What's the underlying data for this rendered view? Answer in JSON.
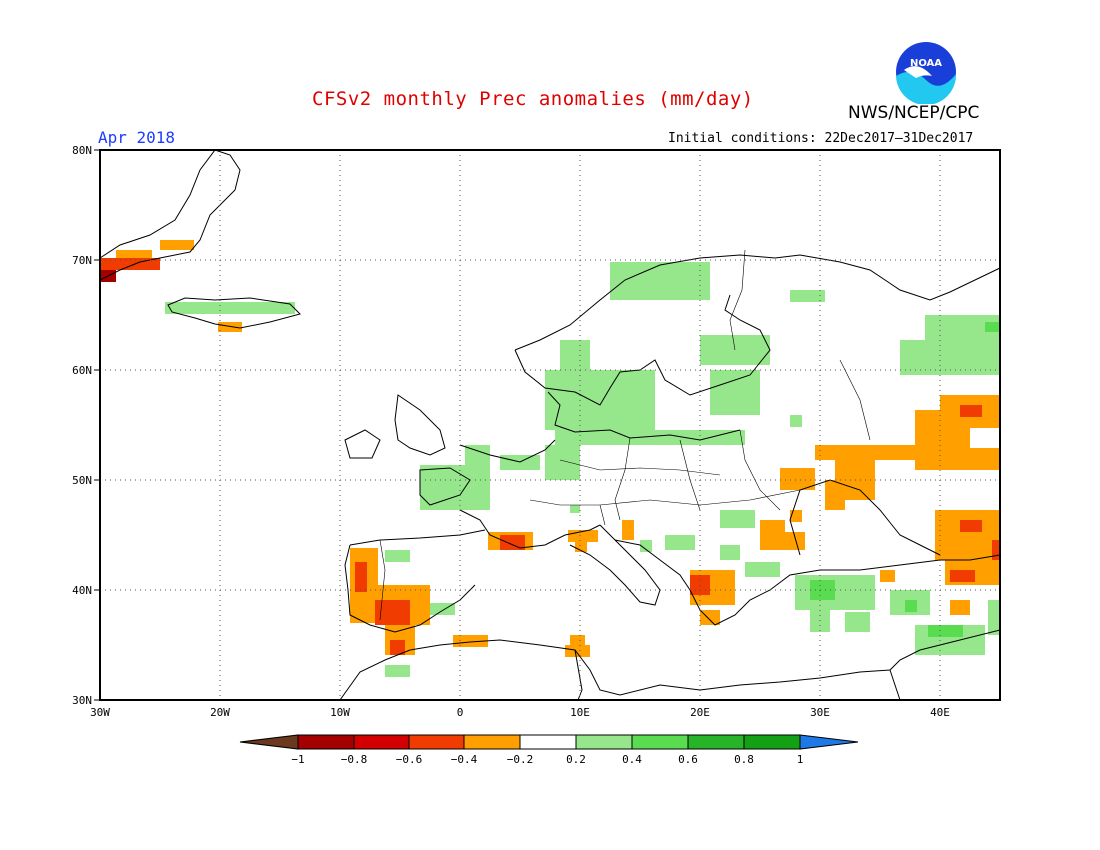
{
  "title": "CFSv2 monthly Prec anomalies (mm/day)",
  "month": "Apr 2018",
  "initial_conditions": "Initial conditions: 22Dec2017–31Dec2017",
  "agency": "NWS/NCEP/CPC",
  "logo_text": "NOAA",
  "map": {
    "lon_range": [
      -30,
      45
    ],
    "lat_range": [
      30,
      80
    ],
    "lat_ticks": [
      "80N",
      "70N",
      "60N",
      "50N",
      "40N",
      "30N"
    ],
    "lon_ticks": [
      "30W",
      "20W",
      "10W",
      "0",
      "10E",
      "20E",
      "30E",
      "40E"
    ],
    "grid": true
  },
  "colorbar": {
    "labels": [
      "−1",
      "−0.8",
      "−0.6",
      "−0.4",
      "−0.2",
      "0.2",
      "0.4",
      "0.6",
      "0.8",
      "1"
    ],
    "colors": [
      "#6b3a1e",
      "#a50000",
      "#d20000",
      "#f03c00",
      "#ffa000",
      "#ffffff",
      "#96e68c",
      "#5adc50",
      "#28b428",
      "#14a014",
      "#1e78e6"
    ]
  },
  "anomaly_colors": {
    "orange": "#ffa000",
    "red_orange": "#f03c00",
    "dark_red": "#a50000",
    "light_green": "#96e68c",
    "green": "#5adc50"
  }
}
